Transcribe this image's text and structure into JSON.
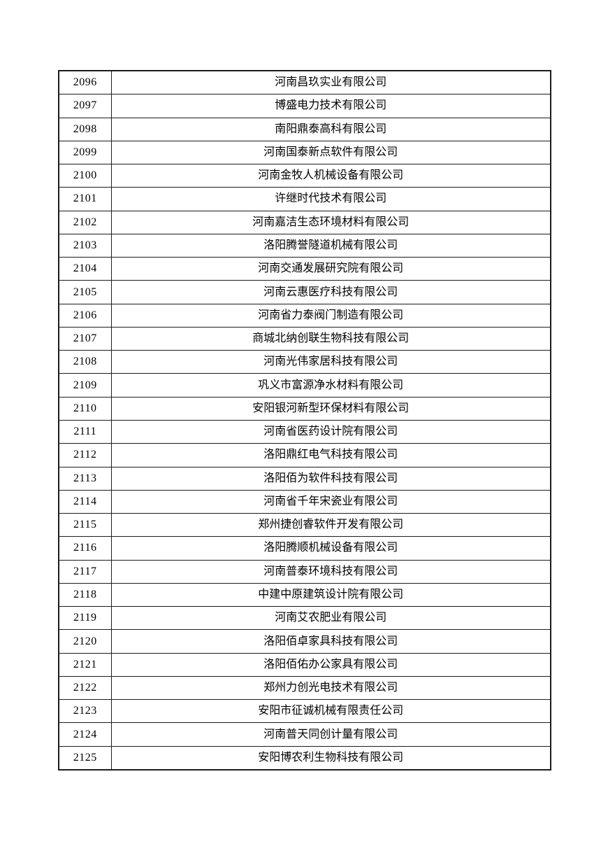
{
  "page": {
    "background_color": "#ffffff",
    "text_color": "#000000",
    "border_color": "#1c1c1c"
  },
  "table": {
    "rows": [
      {
        "no": "2096",
        "company": "河南昌玖实业有限公司"
      },
      {
        "no": "2097",
        "company": "博盛电力技术有限公司"
      },
      {
        "no": "2098",
        "company": "南阳鼎泰高科有限公司"
      },
      {
        "no": "2099",
        "company": "河南国泰新点软件有限公司"
      },
      {
        "no": "2100",
        "company": "河南金牧人机械设备有限公司"
      },
      {
        "no": "2101",
        "company": "许继时代技术有限公司"
      },
      {
        "no": "2102",
        "company": "河南嘉洁生态环境材料有限公司"
      },
      {
        "no": "2103",
        "company": "洛阳腾誉隧道机械有限公司"
      },
      {
        "no": "2104",
        "company": "河南交通发展研究院有限公司"
      },
      {
        "no": "2105",
        "company": "河南云惠医疗科技有限公司"
      },
      {
        "no": "2106",
        "company": "河南省力泰阀门制造有限公司"
      },
      {
        "no": "2107",
        "company": "商城北纳创联生物科技有限公司"
      },
      {
        "no": "2108",
        "company": "河南光伟家居科技有限公司"
      },
      {
        "no": "2109",
        "company": "巩义市富源净水材料有限公司"
      },
      {
        "no": "2110",
        "company": "安阳银河新型环保材料有限公司"
      },
      {
        "no": "2111",
        "company": "河南省医药设计院有限公司"
      },
      {
        "no": "2112",
        "company": "洛阳鼎红电气科技有限公司"
      },
      {
        "no": "2113",
        "company": "洛阳佰为软件科技有限公司"
      },
      {
        "no": "2114",
        "company": "河南省千年宋瓷业有限公司"
      },
      {
        "no": "2115",
        "company": "郑州捷创睿软件开发有限公司"
      },
      {
        "no": "2116",
        "company": "洛阳腾顺机械设备有限公司"
      },
      {
        "no": "2117",
        "company": "河南普泰环境科技有限公司"
      },
      {
        "no": "2118",
        "company": "中建中原建筑设计院有限公司"
      },
      {
        "no": "2119",
        "company": "河南艾农肥业有限公司"
      },
      {
        "no": "2120",
        "company": "洛阳佰卓家具科技有限公司"
      },
      {
        "no": "2121",
        "company": "洛阳佰佑办公家具有限公司"
      },
      {
        "no": "2122",
        "company": "郑州力创光电技术有限公司"
      },
      {
        "no": "2123",
        "company": "安阳市征诚机械有限责任公司"
      },
      {
        "no": "2124",
        "company": "河南普天同创计量有限公司"
      },
      {
        "no": "2125",
        "company": "安阳博农利生物科技有限公司"
      }
    ]
  }
}
